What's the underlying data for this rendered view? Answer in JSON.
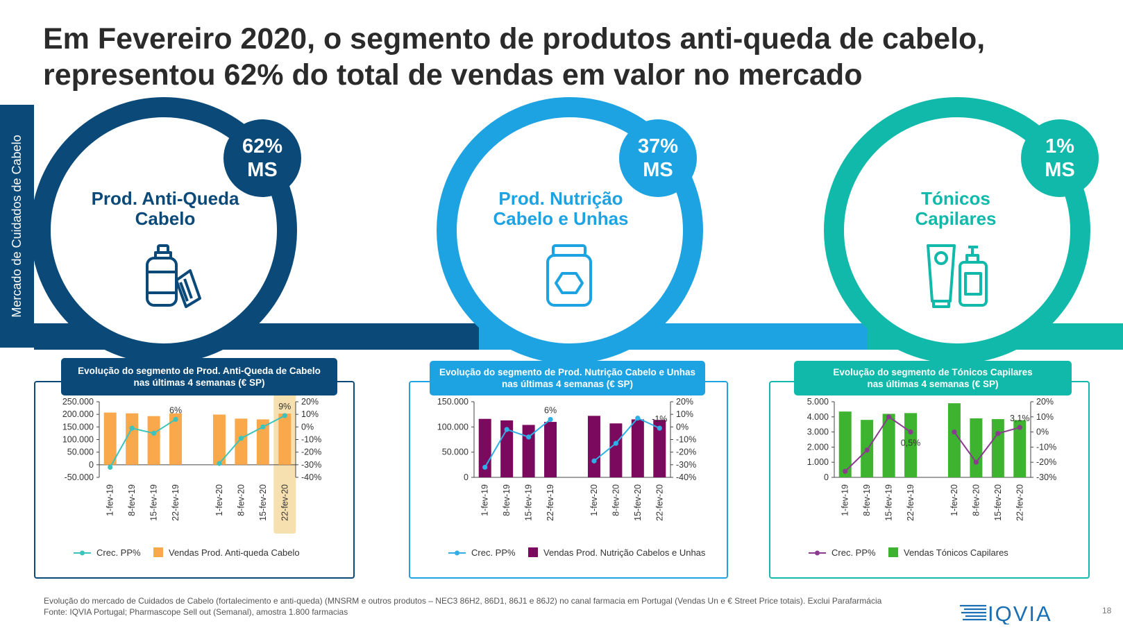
{
  "title": "Em Fevereiro 2020, o segmento de produtos anti-queda de cabelo, representou 62% do total de vendas em valor no mercado",
  "sidebar_label": "Mercado de Cuidados de Cabelo",
  "segments": [
    {
      "name_line1": "Prod. Anti-Queda",
      "name_line2": "Cabelo",
      "share": "62%",
      "share_unit": "MS",
      "color": "#0b4a78",
      "icon": "shampoo-bottle-comb-icon"
    },
    {
      "name_line1": "Prod. Nutrição",
      "name_line2": "Cabelo e Unhas",
      "share": "37%",
      "share_unit": "MS",
      "color": "#1ea3e2",
      "icon": "supplement-jar-icon"
    },
    {
      "name_line1": "Tónicos",
      "name_line2": "Capilares",
      "share": "1%",
      "share_unit": "MS",
      "color": "#10b9a9",
      "icon": "tube-pump-bottle-icon"
    }
  ],
  "chart_data": [
    {
      "type": "bar",
      "title_line1": "Evolução do segmento de Prod. Anti-Queda de Cabelo",
      "title_line2": "nas últimas 4 semanas (€ SP)",
      "categories": [
        "1-fev-19",
        "8-fev-19",
        "15-fev-19",
        "22-fev-19",
        "1-fev-20",
        "8-fev-20",
        "15-fev-20",
        "22-fev-20"
      ],
      "series": [
        {
          "name": "Vendas Prod. Anti-queda Cabelo",
          "kind": "bar",
          "color": "#f9a94b",
          "values": [
            207000,
            204000,
            193000,
            204000,
            199000,
            183000,
            180000,
            203000
          ]
        },
        {
          "name": "Crec. PP%",
          "kind": "line",
          "color": "#3bc4bd",
          "values": [
            -32,
            -1,
            -5,
            6,
            -29,
            -9,
            0,
            9
          ]
        }
      ],
      "y_left": {
        "min": -50000,
        "max": 250000,
        "ticks": [
          "250.000",
          "200.000",
          "150.000",
          "100.000",
          "50.000",
          "0",
          "-50.000"
        ]
      },
      "y_right": {
        "min": -40,
        "max": 20,
        "ticks": [
          "20%",
          "10%",
          "0%",
          "-10%",
          "-20%",
          "-30%",
          "-40%"
        ]
      },
      "data_labels": [
        {
          "index": 3,
          "text": "6%"
        },
        {
          "index": 7,
          "text": "9%"
        }
      ],
      "highlight_index": 7,
      "border_color": "#0b4a78"
    },
    {
      "type": "bar",
      "title_line1": "Evolução do segmento de Prod. Nutrição Cabelo e Unhas",
      "title_line2": "nas últimas 4 semanas (€ SP)",
      "categories": [
        "1-fev-19",
        "8-fev-19",
        "15-fev-19",
        "22-fev-19",
        "1-fev-20",
        "8-fev-20",
        "15-fev-20",
        "22-fev-20"
      ],
      "series": [
        {
          "name": "Vendas Prod. Nutrição Cabelos e Unhas",
          "kind": "bar",
          "color": "#7b0a5e",
          "values": [
            116000,
            113000,
            104000,
            110000,
            122000,
            107000,
            115000,
            114000
          ]
        },
        {
          "name": "Crec. PP%",
          "kind": "line",
          "color": "#30aee6",
          "values": [
            -32,
            -2,
            -8,
            6,
            -27,
            -13,
            7,
            -1
          ]
        }
      ],
      "y_left": {
        "min": 0,
        "max": 150000,
        "ticks": [
          "150.000",
          "100.000",
          "50.000",
          "0"
        ]
      },
      "y_right": {
        "min": -40,
        "max": 20,
        "ticks": [
          "20%",
          "10%",
          "0%",
          "-10%",
          "-20%",
          "-30%",
          "-40%"
        ]
      },
      "data_labels": [
        {
          "index": 3,
          "text": "6%"
        },
        {
          "index": 7,
          "text": "-1%"
        }
      ],
      "highlight_index": null,
      "border_color": "#1ea3e2"
    },
    {
      "type": "bar",
      "title_line1": "Evolução do segmento de Tónicos Capilares",
      "title_line2": "nas últimas 4 semanas (€ SP)",
      "categories": [
        "1-fev-19",
        "8-fev-19",
        "15-fev-19",
        "22-fev-19",
        "1-fev-20",
        "8-fev-20",
        "15-fev-20",
        "22-fev-20"
      ],
      "series": [
        {
          "name": "Vendas Tónicos Capilares",
          "kind": "bar",
          "color": "#3db32f",
          "values": [
            4350,
            3800,
            4200,
            4250,
            4900,
            3900,
            3850,
            3780
          ]
        },
        {
          "name": "Crec. PP%",
          "kind": "line",
          "color": "#8b3a8f",
          "values": [
            -26,
            -12,
            10,
            0,
            0,
            -20,
            -1,
            3
          ]
        }
      ],
      "y_left": {
        "min": 0,
        "max": 5000,
        "ticks": [
          "5.000",
          "4.000",
          "3.000",
          "2.000",
          "1.000",
          "0"
        ]
      },
      "y_right": {
        "min": -30,
        "max": 20,
        "ticks": [
          "20%",
          "10%",
          "0%",
          "-10%",
          "-20%",
          "-30%"
        ]
      },
      "data_labels": [
        {
          "index": 3,
          "text": "0,5%"
        },
        {
          "index": 7,
          "text": "3,1%"
        }
      ],
      "highlight_index": null,
      "border_color": "#10b9a9"
    }
  ],
  "footnote_line1": "Evolução do mercado de Cuidados de Cabelo (fortalecimento e anti-queda) (MNSRM e outros produtos – NEC3  86H2, 86D1, 86J1 e 86J2) no canal farmacia em Portugal (Vendas Un e € Street Price totais). Exclui Parafarmácia",
  "footnote_line2": "Fonte: IQVIA Portugal; Pharmascope Sell out (Semanal), amostra 1.800 farmacias",
  "logo_text": "IQVIA",
  "page_number": "18"
}
